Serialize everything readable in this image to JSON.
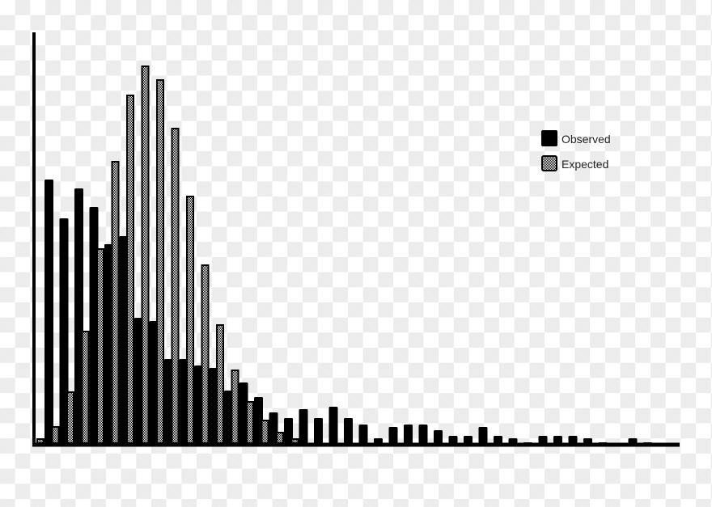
{
  "chart_data": {
    "type": "bar",
    "title": "",
    "xlabel": "",
    "ylabel": "",
    "ylim": [
      0,
      508
    ],
    "grid": false,
    "legend_position": "top-right",
    "series": [
      {
        "name": "Observed",
        "color": "#000000",
        "fill": "solid",
        "values": [
          326,
          278,
          315,
          292,
          246,
          256,
          155,
          151,
          104,
          104,
          96,
          93,
          65,
          75,
          57,
          38,
          31,
          42,
          31,
          45,
          31,
          23,
          6,
          20,
          23,
          23,
          16,
          9,
          9,
          20,
          9,
          6,
          1,
          9,
          9,
          9,
          6,
          1,
          0,
          6,
          1
        ]
      },
      {
        "name": "Expected",
        "color": "#000000",
        "fill": "checkered",
        "values": [
          5,
          20,
          63,
          138,
          240,
          348,
          430,
          466,
          449,
          389,
          305,
          220,
          146,
          90,
          51,
          28,
          13,
          5,
          0,
          0,
          0,
          0,
          0,
          0,
          0,
          0,
          0,
          0,
          0,
          0,
          0,
          0,
          0,
          0,
          0,
          0,
          0,
          0,
          0,
          0,
          0
        ]
      }
    ]
  }
}
